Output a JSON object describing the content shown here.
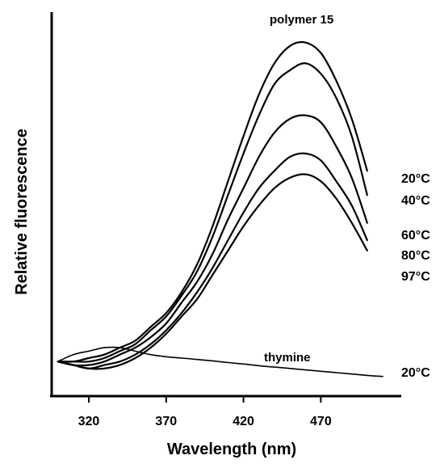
{
  "chart_data": {
    "type": "line",
    "xlabel": "Wavelength (nm)",
    "ylabel": "Relative fluorescence",
    "xlim": [
      296,
      522
    ],
    "ylim": [
      0,
      100
    ],
    "x_ticks": [
      320,
      370,
      420,
      470
    ],
    "grid": false,
    "legend": "none",
    "annotations": [
      {
        "id": "polymer",
        "text": "polymer 15"
      },
      {
        "id": "thymine",
        "text": "thymine"
      }
    ],
    "series": [
      {
        "name": "20°C",
        "group": "polymer 15",
        "x": [
          300,
          310,
          320,
          330,
          340,
          350,
          360,
          370,
          380,
          390,
          400,
          410,
          420,
          430,
          440,
          450,
          460,
          470,
          480,
          490,
          500
        ],
        "y": [
          6,
          6,
          7,
          8,
          10,
          12,
          16,
          20,
          26,
          34,
          45,
          58,
          71,
          83,
          92,
          97,
          98,
          95,
          87,
          76,
          61
        ]
      },
      {
        "name": "40°C",
        "group": "polymer 15",
        "x": [
          300,
          310,
          320,
          330,
          340,
          350,
          360,
          370,
          380,
          390,
          400,
          410,
          420,
          430,
          440,
          450,
          460,
          470,
          480,
          490,
          500
        ],
        "y": [
          6,
          6,
          6,
          7,
          9,
          11,
          15,
          19,
          25,
          32,
          42,
          54,
          66,
          77,
          86,
          90,
          92,
          89,
          82,
          71,
          54
        ]
      },
      {
        "name": "60°C",
        "group": "polymer 15",
        "x": [
          300,
          310,
          320,
          330,
          340,
          350,
          360,
          370,
          380,
          390,
          400,
          410,
          420,
          430,
          440,
          450,
          460,
          470,
          480,
          490,
          500
        ],
        "y": [
          6,
          5,
          5,
          6,
          8,
          10,
          13,
          17,
          23,
          29,
          37,
          47,
          56,
          65,
          72,
          76,
          77,
          75,
          68,
          59,
          46
        ]
      },
      {
        "name": "80°C",
        "group": "polymer 15",
        "x": [
          300,
          310,
          320,
          330,
          340,
          350,
          360,
          370,
          380,
          390,
          400,
          410,
          420,
          430,
          440,
          450,
          460,
          470,
          480,
          490,
          500
        ],
        "y": [
          6,
          5,
          4,
          5,
          6,
          8,
          11,
          15,
          20,
          26,
          33,
          41,
          49,
          56,
          61,
          65,
          66,
          64,
          58,
          51,
          41
        ]
      },
      {
        "name": "97°C",
        "group": "polymer 15",
        "x": [
          300,
          310,
          320,
          330,
          340,
          350,
          360,
          370,
          380,
          390,
          400,
          410,
          420,
          430,
          440,
          450,
          460,
          470,
          480,
          490,
          500
        ],
        "y": [
          6,
          5,
          4,
          4,
          5,
          7,
          10,
          14,
          19,
          24,
          31,
          38,
          45,
          51,
          56,
          59,
          60,
          58,
          53,
          46,
          38
        ]
      },
      {
        "name": "20°C",
        "group": "thymine",
        "x": [
          300,
          310,
          320,
          330,
          340,
          350,
          360,
          370,
          380,
          390,
          400,
          410,
          420,
          430,
          440,
          450,
          460,
          470,
          480,
          490,
          500,
          510
        ],
        "y": [
          6,
          8,
          9,
          10,
          10,
          9,
          8,
          7.4,
          7,
          6.6,
          6.2,
          5.7,
          5.3,
          4.8,
          4.4,
          4,
          3.6,
          3.2,
          2.8,
          2.4,
          2,
          1.7
        ]
      }
    ]
  }
}
